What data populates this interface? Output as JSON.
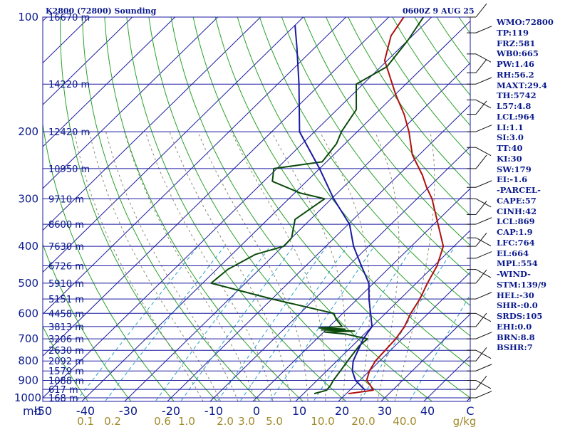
{
  "header": {
    "station": "K2800 (72800) Sounding",
    "valid_time": "0600Z  9 AUG 25"
  },
  "chart_data": {
    "type": "line",
    "title": "K2800 (72800) Sounding",
    "subtitle": "0600Z  9 AUG 25",
    "pressure_axis": {
      "unit_label": "mb",
      "ticks": [
        100,
        200,
        300,
        400,
        500,
        600,
        700,
        800,
        900,
        1000
      ],
      "range": [
        1050,
        100
      ],
      "scale": "log"
    },
    "temperature_axis": {
      "ticks": [
        "-50",
        "-40",
        "-30",
        "-20",
        "-10",
        "0",
        "10",
        "20",
        "30",
        "40",
        "C"
      ],
      "range": [
        -50,
        50
      ]
    },
    "mixing_ratio_labels": [
      "0.1",
      "0.2",
      "0.6",
      "1.0",
      "2.0",
      "3.0",
      "5.0",
      "10.0",
      "20.0",
      "40.0",
      "g/kg"
    ],
    "height_labels": [
      {
        "p": 100,
        "label": "16670 m"
      },
      {
        "p": 150,
        "label": "14220 m"
      },
      {
        "p": 200,
        "label": "12420 m"
      },
      {
        "p": 250,
        "label": "10950 m"
      },
      {
        "p": 300,
        "label": "9710 m"
      },
      {
        "p": 350,
        "label": "8600 m"
      },
      {
        "p": 400,
        "label": "7630 m"
      },
      {
        "p": 450,
        "label": "6726 m"
      },
      {
        "p": 500,
        "label": "5910 m"
      },
      {
        "p": 550,
        "label": "5151 m"
      },
      {
        "p": 600,
        "label": "4458 m"
      },
      {
        "p": 650,
        "label": "3813 m"
      },
      {
        "p": 700,
        "label": "3206 m"
      },
      {
        "p": 750,
        "label": "2630 m"
      },
      {
        "p": 800,
        "label": "2092 m"
      },
      {
        "p": 850,
        "label": "1579 m"
      },
      {
        "p": 900,
        "label": "1088 m"
      },
      {
        "p": 950,
        "label": "617 m"
      },
      {
        "p": 1000,
        "label": "168 m"
      }
    ],
    "series": [
      {
        "color": "#b01010",
        "points": [
          [
            975,
            20.5
          ],
          [
            955,
            25.5
          ],
          [
            925,
            23.5
          ],
          [
            900,
            21.6
          ],
          [
            850,
            20.0
          ],
          [
            800,
            19.0
          ],
          [
            700,
            18.5
          ],
          [
            650,
            17.6
          ],
          [
            600,
            15.9
          ],
          [
            550,
            14.6
          ],
          [
            500,
            12.6
          ],
          [
            450,
            10.7
          ],
          [
            400,
            7.5
          ],
          [
            350,
            1.0
          ],
          [
            300,
            -6.5
          ],
          [
            280,
            -10.5
          ],
          [
            260,
            -14.4
          ],
          [
            230,
            -21.6
          ],
          [
            200,
            -27.9
          ],
          [
            180,
            -33.2
          ],
          [
            160,
            -39.8
          ],
          [
            130,
            -50.6
          ],
          [
            112,
            -55.0
          ],
          [
            100,
            -56.5
          ]
        ]
      },
      {
        "color": "#0b4a0b",
        "points": [
          [
            975,
            12.5
          ],
          [
            955,
            14.6
          ],
          [
            925,
            14.3
          ],
          [
            900,
            13.8
          ],
          [
            850,
            13.2
          ],
          [
            800,
            12.5
          ],
          [
            730,
            11.6
          ],
          [
            700,
            11.9
          ],
          [
            680,
            5.6
          ],
          [
            672,
            0.3
          ],
          [
            668,
            7.0
          ],
          [
            663,
            -1.0
          ],
          [
            660,
            4.3
          ],
          [
            655,
            -2.1
          ],
          [
            650,
            3.0
          ],
          [
            620,
            -0.3
          ],
          [
            600,
            -2.1
          ],
          [
            550,
            -20.0
          ],
          [
            500,
            -38.0
          ],
          [
            460,
            -37.4
          ],
          [
            420,
            -34.5
          ],
          [
            400,
            -29.8
          ],
          [
            380,
            -30.0
          ],
          [
            340,
            -33.6
          ],
          [
            300,
            -31.6
          ],
          [
            290,
            -38.6
          ],
          [
            270,
            -48.0
          ],
          [
            250,
            -50.7
          ],
          [
            240,
            -41.0
          ],
          [
            215,
            -42.0
          ],
          [
            200,
            -43.7
          ],
          [
            175,
            -45.5
          ],
          [
            150,
            -51.6
          ],
          [
            135,
            -48.6
          ],
          [
            115,
            -50.0
          ],
          [
            100,
            -51.9
          ]
        ]
      },
      {
        "color": "#1a1aa0",
        "points": [
          [
            955,
            23.6
          ],
          [
            900,
            19.0
          ],
          [
            850,
            16.0
          ],
          [
            800,
            13.8
          ],
          [
            700,
            10.9
          ],
          [
            650,
            10.0
          ],
          [
            600,
            6.5
          ],
          [
            550,
            2.7
          ],
          [
            500,
            -1.1
          ],
          [
            450,
            -7.0
          ],
          [
            400,
            -13.5
          ],
          [
            350,
            -19.7
          ],
          [
            300,
            -29.5
          ],
          [
            250,
            -40.0
          ],
          [
            200,
            -53.5
          ],
          [
            150,
            -65.0
          ],
          [
            120,
            -74.3
          ],
          [
            105,
            -80.0
          ]
        ]
      }
    ],
    "grid": true
  },
  "indices": [
    "WMO:72800",
    "TP:119",
    "FRZ:581",
    "WB0:665",
    "PW:1.46",
    "RH:56.2",
    "MAXT:29.4",
    "TH:5742",
    "L57:4.8",
    "LCL:964",
    "LI:1.1",
    "SI:3.0",
    "TT:40",
    "KI:30",
    "SW:179",
    "EI:-1.6",
    "-PARCEL-",
    "CAPE:57",
    "CINH:42",
    "LCL:869",
    "CAP:1.9",
    "LFC:764",
    "EL:664",
    "MPL:554",
    "-WIND-",
    "STM:139/9",
    "HEL:-30",
    "SHR-:0.0",
    "SRDS:105",
    "EHI:0.0",
    "BRN:8.8",
    "BSHR:7"
  ],
  "colors": {
    "isobar": "#1a1aa0",
    "isotherm": "#1a1aa0",
    "dry_adiabat": "#2aa02a",
    "mixing_ratio": "#28a0c8",
    "moist_adiabat": "#888870",
    "text": "#0b1a8c",
    "mixing_label": "#a08a2a"
  }
}
